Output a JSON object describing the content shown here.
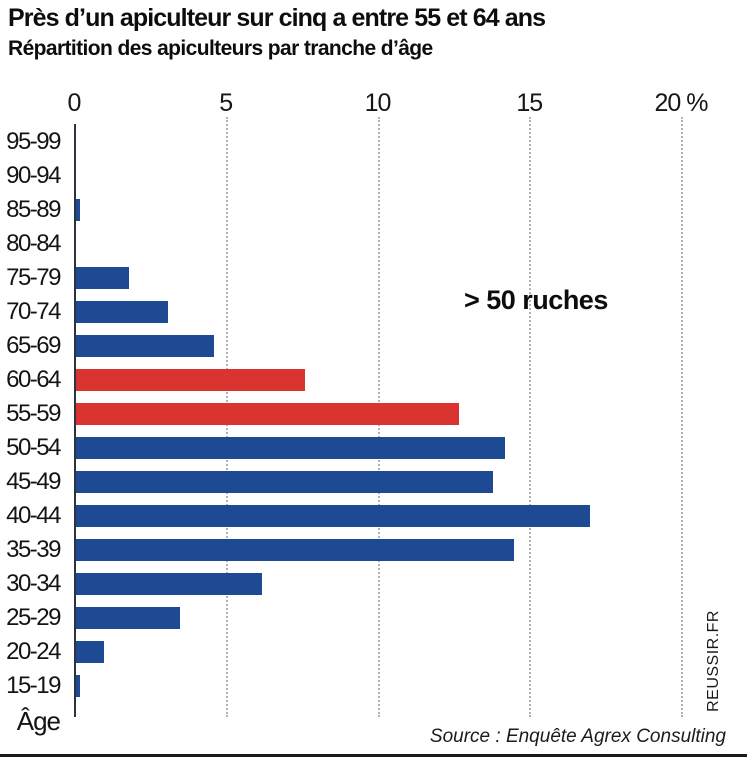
{
  "header": {
    "title": "Près d’un apiculteur sur cinq a entre 55 et 64 ans",
    "subtitle": "Répartition des apiculteurs par tranche d’âge"
  },
  "chart_data": {
    "type": "bar",
    "orientation": "horizontal",
    "title": "Près d’un apiculteur sur cinq a entre 55 et 64 ans",
    "subtitle": "Répartition des apiculteurs par tranche d’âge",
    "ylabel": "Âge",
    "xlabel": "%",
    "xlim": [
      0,
      20
    ],
    "x_ticks": [
      0,
      5,
      10,
      15,
      20
    ],
    "x_tick_suffix": " %",
    "grid": "vertical-dotted",
    "legend": "none",
    "annotation": "> 50 ruches",
    "categories": [
      "95-99",
      "90-94",
      "85-89",
      "80-84",
      "75-79",
      "70-74",
      "65-69",
      "60-64",
      "55-59",
      "50-54",
      "45-49",
      "40-44",
      "35-39",
      "30-34",
      "25-29",
      "20-24",
      "15-19"
    ],
    "values": [
      0,
      0,
      0.2,
      0,
      1.8,
      3.1,
      4.6,
      7.6,
      12.7,
      14.2,
      13.8,
      17.0,
      14.5,
      6.2,
      3.5,
      1.0,
      0.2
    ],
    "highlighted_categories": [
      "60-64",
      "55-59"
    ],
    "colors": {
      "bar": "#1e4a94",
      "highlight": "#d93430",
      "axis": "#2b3440",
      "grid": "#adb4ba"
    }
  },
  "axis_label": "Âge",
  "watermark": "REUSSIR.FR",
  "footer": {
    "source": "Source : Enquête Agrex Consulting"
  }
}
